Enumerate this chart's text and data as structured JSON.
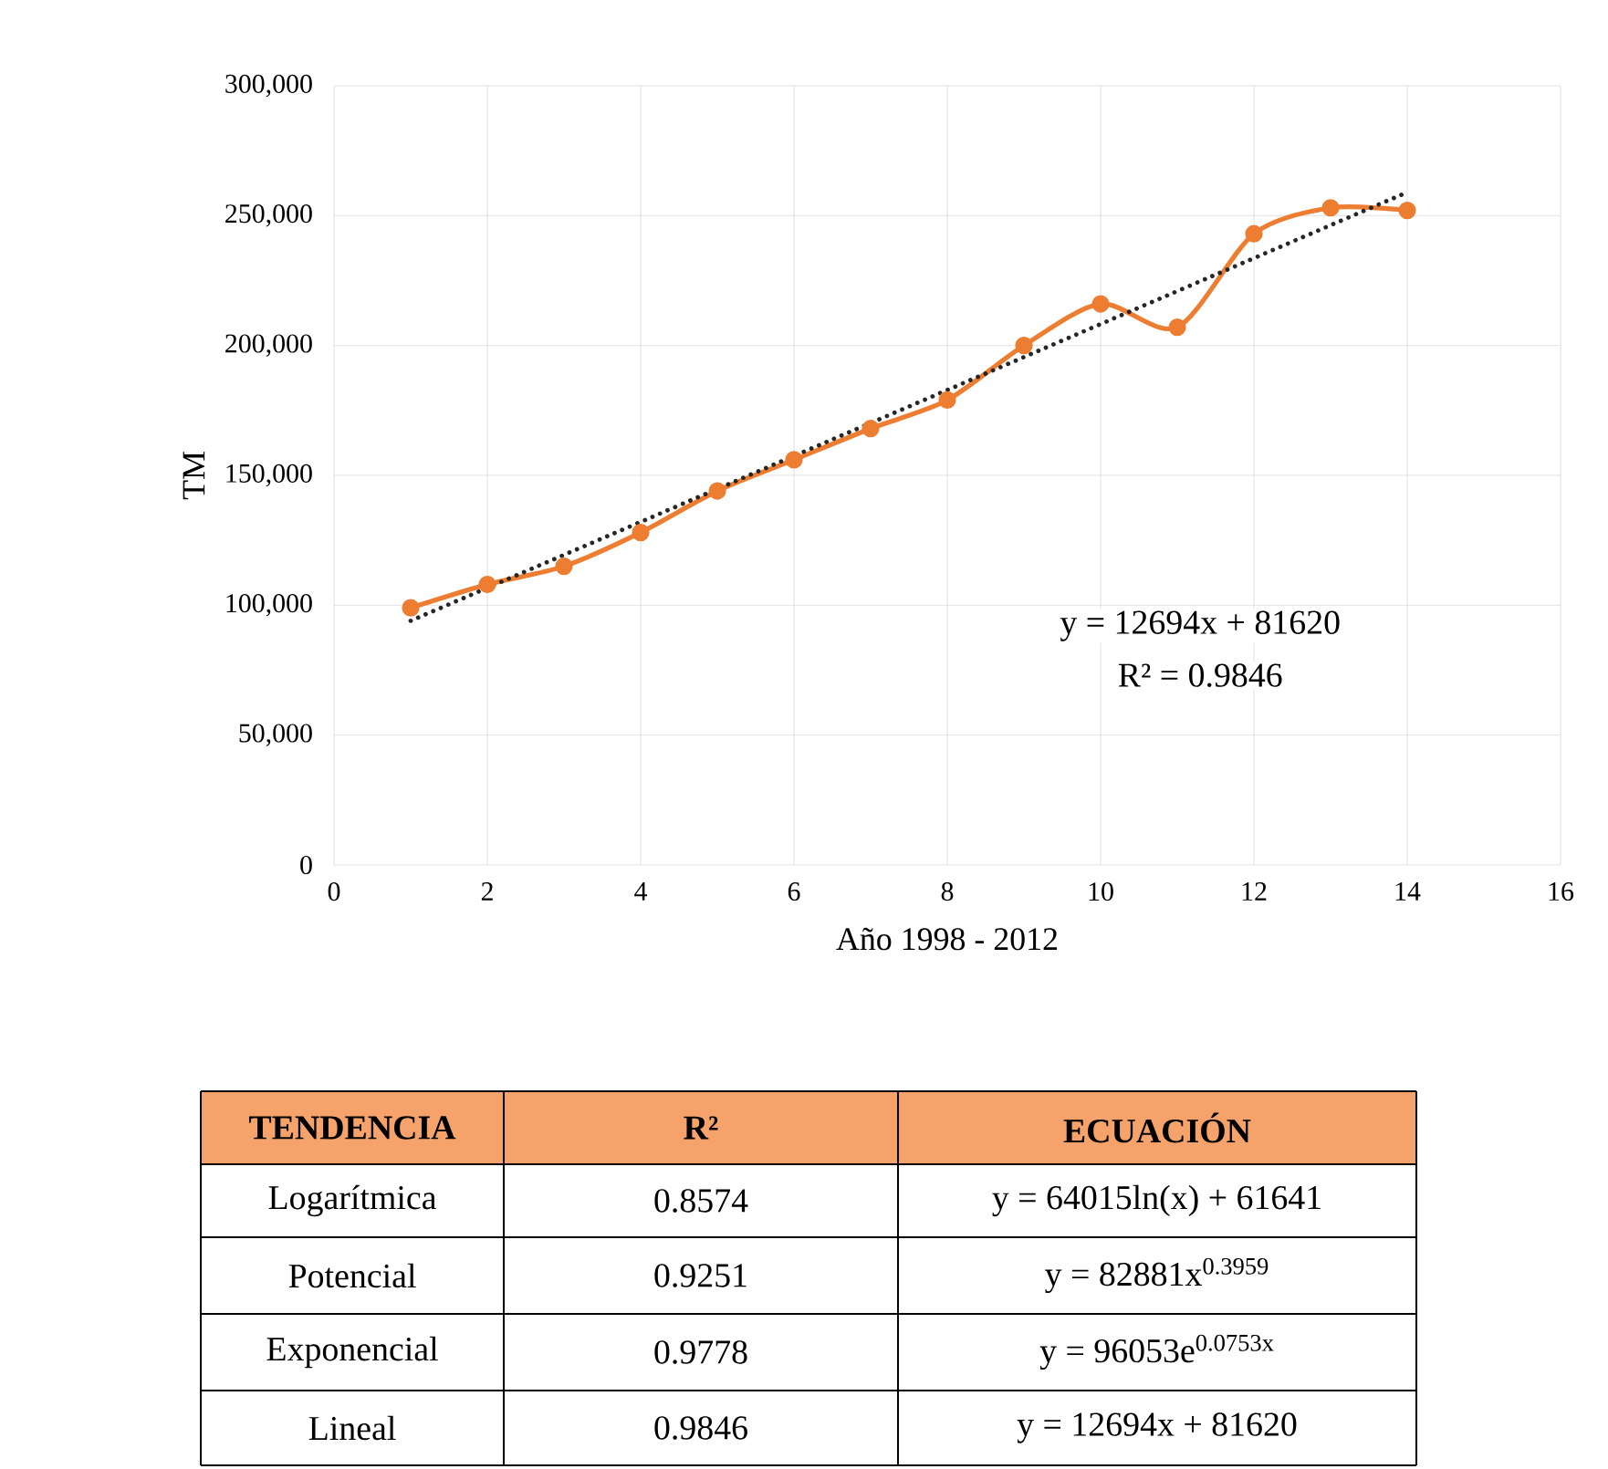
{
  "chart_data": {
    "type": "line",
    "xlabel": "Año 1998 - 2012",
    "ylabel": "TM",
    "xlim": [
      0,
      16
    ],
    "ylim": [
      0,
      300000
    ],
    "xticks": [
      0,
      2,
      4,
      6,
      8,
      10,
      12,
      14,
      16
    ],
    "yticks": [
      {
        "value": 0,
        "label": "0"
      },
      {
        "value": 50000,
        "label": "50,000"
      },
      {
        "value": 100000,
        "label": "100,000"
      },
      {
        "value": 150000,
        "label": "150,000"
      },
      {
        "value": 200000,
        "label": "200,000"
      },
      {
        "value": 250000,
        "label": "250,000"
      },
      {
        "value": 300000,
        "label": "300,000"
      }
    ],
    "grid": true,
    "marker": "circle",
    "series": [
      {
        "color": "#ed7d31",
        "x": [
          1,
          2,
          3,
          4,
          5,
          6,
          7,
          8,
          9,
          10,
          11,
          12,
          13,
          14
        ],
        "values": [
          99000,
          108000,
          115000,
          128000,
          144000,
          156000,
          168000,
          179000,
          200000,
          216000,
          207000,
          243000,
          253000,
          252000
        ]
      },
      {
        "color": "#262626",
        "x": [
          1,
          14
        ],
        "values": [
          94000,
          259000
        ],
        "marker": "none",
        "line_style": "dotted"
      }
    ],
    "annotations": [
      "y = 12694x + 81620",
      "R² = 0.9846",
      "TENDENCIA",
      "R²",
      "ECUACIÓN",
      "Logarítmica",
      "0.8574",
      "y = 64015ln(x) + 61641",
      "Potencial",
      "0.9251",
      "y = 82881x$^{0.3959}$",
      "Exponencial",
      "0.9778",
      "y = 96053e$^{0.0753x}$",
      "Lineal",
      "0.9846",
      "y = 12694x + 81620"
    ]
  }
}
